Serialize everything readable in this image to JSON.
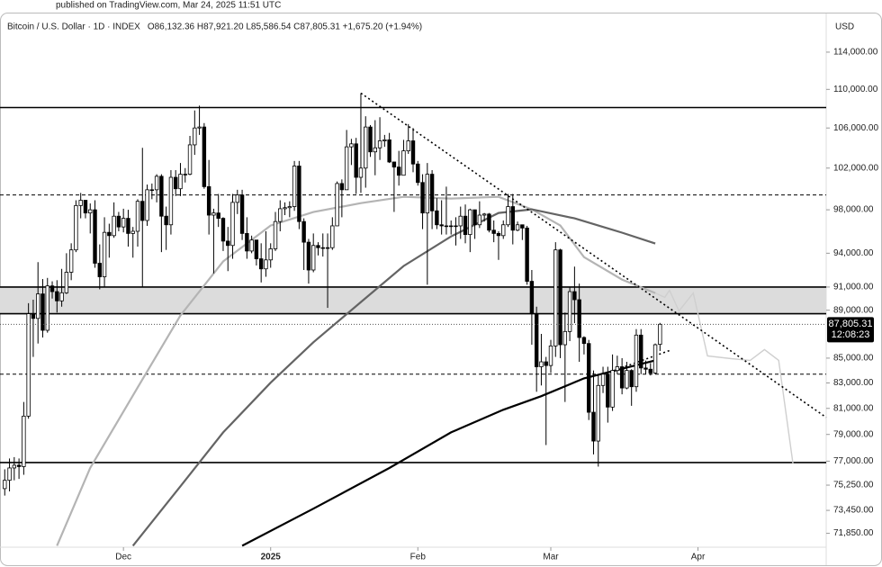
{
  "header": "published on TradingView.com, Mar 24, 2025 11:51 UTC",
  "chart_data": {
    "type": "candlestick",
    "title": "Bitcoin / U.S. Dollar · 1D · INDEX",
    "ohlc_text": "O86,132.36  H87,921.20  L85,586.54  C87,805.31  +1,675.20 (+1.94%)",
    "currency": "USD",
    "last_price_label": "87,805.31",
    "countdown": "12:08:23",
    "up_color": "#ffffff",
    "down_color": "#000000",
    "log_scale": true,
    "xlim": [
      -1,
      173
    ],
    "xticks": [
      {
        "value": 25,
        "label": "Dec"
      },
      {
        "value": 56,
        "label": "2025"
      },
      {
        "value": 87,
        "label": "Feb"
      },
      {
        "value": 115,
        "label": "Mar"
      },
      {
        "value": 146,
        "label": "Apr"
      }
    ],
    "ylim": [
      70900,
      118000
    ],
    "yticks": [
      {
        "value": 114000,
        "label": "114,000.00"
      },
      {
        "value": 110000,
        "label": "110,000.00"
      },
      {
        "value": 106000,
        "label": "106,000.00"
      },
      {
        "value": 102000,
        "label": "102,000.00"
      },
      {
        "value": 98000,
        "label": "98,000.00"
      },
      {
        "value": 94000,
        "label": "94,000.00"
      },
      {
        "value": 91000,
        "label": "91,000.00"
      },
      {
        "value": 89000,
        "label": "89,000.00"
      },
      {
        "value": 85000,
        "label": "85,000.00"
      },
      {
        "value": 83000,
        "label": "83,000.00"
      },
      {
        "value": 81000,
        "label": "81,000.00"
      },
      {
        "value": 79000,
        "label": "79,000.00"
      },
      {
        "value": 77000,
        "label": "77,000.00"
      },
      {
        "value": 75250,
        "label": "75,250.00"
      },
      {
        "value": 73450,
        "label": "73,450.00"
      },
      {
        "value": 71850,
        "label": "71,850.00"
      }
    ],
    "open": [
      75000,
      75600,
      76500,
      76700,
      76600,
      80400,
      88700,
      88300,
      90400,
      87300,
      91100,
      90600,
      89800,
      90500,
      92300,
      94300,
      98400,
      98900,
      97700,
      98000,
      93100,
      91900,
      95900,
      95600,
      97400,
      96400,
      97200,
      95800,
      96000,
      98800,
      97000,
      99900,
      99900,
      101200,
      97400,
      96600,
      101100,
      100000,
      101400,
      101400,
      104300,
      106000,
      106100,
      100200,
      97500,
      97700,
      97200,
      95100,
      94700,
      98700,
      99400,
      95800,
      94200,
      95200,
      93500,
      92600,
      93400,
      94400,
      96900,
      98100,
      98200,
      98300,
      102200,
      96900,
      95000,
      92500,
      94700,
      94500,
      94500,
      94500,
      96500,
      100500,
      99900,
      104100,
      104400,
      101100,
      102000,
      106100,
      103600,
      104000,
      104700,
      104800,
      102600,
      102100,
      101300,
      103700,
      104700,
      102400,
      100600,
      97700,
      101400,
      97900,
      96600,
      96500,
      96500,
      96500,
      96500,
      97400,
      95700,
      98000,
      96600,
      97500,
      97600,
      96100,
      95800,
      95600,
      96600,
      98300,
      96100,
      96600,
      96300,
      91500,
      88700,
      84300,
      84700,
      84400,
      86000,
      94300,
      86100,
      87200,
      90600,
      89900,
      86700,
      86200,
      80700,
      78500,
      82800,
      83700,
      81100,
      84000,
      84300,
      82600,
      84000,
      82700,
      86900,
      84200,
      84100,
      83800,
      86132.36
    ],
    "high": [
      76400,
      77200,
      77300,
      77200,
      81500,
      89600,
      89900,
      93200,
      91700,
      91800,
      91500,
      91600,
      92600,
      94000,
      94900,
      98900,
      99600,
      98800,
      98600,
      98900,
      94800,
      97300,
      96700,
      98700,
      97800,
      98100,
      98000,
      96400,
      99000,
      104000,
      100400,
      100500,
      101400,
      101400,
      98300,
      101800,
      101800,
      102500,
      102000,
      105200,
      107800,
      108300,
      106500,
      102800,
      98100,
      99500,
      97300,
      96400,
      99500,
      99900,
      99900,
      97300,
      95600,
      95200,
      94900,
      96000,
      94900,
      97800,
      98900,
      98700,
      98800,
      102700,
      102700,
      97200,
      95300,
      95800,
      95000,
      95800,
      95800,
      97300,
      100700,
      100900,
      105800,
      104900,
      105000,
      109600,
      107200,
      106300,
      106800,
      107100,
      105300,
      105500,
      102600,
      103700,
      104800,
      106400,
      106000,
      102700,
      101400,
      102500,
      101800,
      99100,
      98900,
      100200,
      97000,
      97300,
      98300,
      98500,
      98100,
      98000,
      98800,
      97700,
      97700,
      97000,
      96000,
      97000,
      99500,
      99500,
      96900,
      96600,
      96500,
      92500,
      89300,
      87000,
      85100,
      86500,
      95000,
      94400,
      88800,
      91000,
      92800,
      91300,
      86800,
      86500,
      84000,
      83600,
      84300,
      84300,
      85300,
      85200,
      85000,
      84700,
      84100,
      87400,
      87400,
      84800,
      84600,
      86200,
      87921.2
    ],
    "low": [
      74500,
      74800,
      75600,
      75700,
      76000,
      80200,
      85100,
      86200,
      86700,
      87100,
      90000,
      88800,
      89300,
      90400,
      91600,
      94100,
      97200,
      97200,
      95800,
      92700,
      90800,
      91000,
      93600,
      95400,
      96000,
      95900,
      94600,
      93600,
      94600,
      91000,
      96500,
      99000,
      98700,
      94100,
      94300,
      95700,
      99300,
      99300,
      100600,
      101300,
      103300,
      105300,
      100000,
      95700,
      92200,
      96400,
      94200,
      92400,
      93500,
      97600,
      95200,
      93500,
      94000,
      92900,
      91400,
      91900,
      92700,
      94200,
      96000,
      97500,
      97300,
      97900,
      96200,
      92500,
      91300,
      92300,
      93800,
      93700,
      89200,
      94300,
      96500,
      97300,
      99900,
      102300,
      99500,
      99600,
      100100,
      103100,
      101300,
      102800,
      104100,
      102500,
      97800,
      100300,
      101300,
      103400,
      101600,
      100300,
      96200,
      91200,
      96200,
      96200,
      95700,
      95700,
      95700,
      94700,
      95300,
      94900,
      94100,
      95300,
      96300,
      96900,
      95900,
      95000,
      93400,
      95300,
      96400,
      94800,
      96000,
      95200,
      91200,
      86100,
      82300,
      82800,
      78200,
      83800,
      85100,
      85000,
      81500,
      86400,
      87900,
      84700,
      85300,
      80100,
      77500,
      76600,
      82200,
      79900,
      80800,
      83700,
      82100,
      82500,
      81200,
      82300,
      83700,
      83700,
      83600,
      83700,
      85586.54
    ],
    "close": [
      75600,
      76500,
      76700,
      76600,
      80400,
      88700,
      88300,
      90400,
      87300,
      91100,
      90600,
      89800,
      90500,
      92300,
      94300,
      98400,
      98900,
      97700,
      98000,
      93100,
      91900,
      95900,
      95600,
      97400,
      96400,
      97200,
      95800,
      96000,
      98800,
      97000,
      99900,
      99900,
      101200,
      97400,
      96600,
      101100,
      100000,
      101400,
      101400,
      104300,
      106000,
      106100,
      100200,
      97500,
      97700,
      97200,
      95100,
      94700,
      98700,
      99400,
      95800,
      94200,
      95200,
      93500,
      92600,
      93400,
      94400,
      96900,
      98100,
      98200,
      98300,
      102200,
      96900,
      95000,
      92500,
      94700,
      94500,
      94500,
      94500,
      96500,
      100500,
      99900,
      104100,
      104400,
      101100,
      102000,
      106100,
      103600,
      104000,
      104700,
      104800,
      102600,
      102100,
      101300,
      103700,
      104700,
      102400,
      100600,
      97700,
      101400,
      97900,
      96600,
      96500,
      96500,
      96500,
      96500,
      97400,
      95700,
      98000,
      96600,
      97500,
      97600,
      96100,
      95800,
      95600,
      96600,
      98300,
      96100,
      96600,
      96300,
      91500,
      88700,
      84300,
      84700,
      84400,
      86000,
      94300,
      86100,
      87200,
      90600,
      89900,
      86700,
      86200,
      80700,
      78500,
      82800,
      83700,
      81100,
      84000,
      84300,
      82600,
      84000,
      82700,
      86900,
      84200,
      84100,
      83800,
      86100,
      87805.31
    ],
    "zone": {
      "values": [
        88700,
        91000
      ],
      "color": "#dcdcdc"
    },
    "levels": [
      {
        "value": 108100,
        "style": "solid"
      },
      {
        "value": 91000,
        "style": "solid"
      },
      {
        "value": 88700,
        "style": "solid"
      },
      {
        "value": 76900,
        "style": "solid"
      },
      {
        "value": 99400,
        "style": "dashed"
      },
      {
        "value": 83700,
        "style": "dashed"
      }
    ],
    "trendlines": [
      {
        "x": [
          75,
          173
        ],
        "values": [
          109600,
          80300
        ]
      },
      {
        "x": [
          128,
          140
        ],
        "values": [
          83950,
          85620
        ]
      }
    ],
    "lines": [
      {
        "color": "#b4b4b4",
        "width": 2.2,
        "x": [
          11,
          18,
          28,
          37,
          46,
          56,
          65,
          75,
          84,
          94,
          104,
          111,
          117,
          122,
          130,
          137
        ],
        "values": [
          71000,
          76500,
          82650,
          88550,
          93270,
          96530,
          97790,
          98630,
          99230,
          99060,
          99230,
          98040,
          96530,
          93650,
          91660,
          90480
        ]
      },
      {
        "color": "#646464",
        "width": 2.2,
        "x": [
          27,
          37,
          46,
          56,
          65,
          75,
          84,
          94,
          104,
          111,
          120,
          130,
          137
        ],
        "values": [
          71000,
          75170,
          79160,
          83020,
          86300,
          89700,
          92850,
          95530,
          97700,
          98040,
          97200,
          95870,
          94880
        ]
      },
      {
        "color": "#000000",
        "width": 2.2,
        "x": [
          50,
          65,
          81,
          94,
          105,
          113,
          122,
          137
        ],
        "values": [
          71000,
          73570,
          76500,
          79160,
          80890,
          81950,
          83370,
          84820
        ]
      },
      {
        "color": "#cfcfcf",
        "width": 1.4,
        "x": [
          137,
          139,
          140,
          142,
          145,
          148,
          153,
          157,
          160,
          163,
          166
        ],
        "values": [
          90480,
          90100,
          90720,
          88930,
          90480,
          85180,
          84960,
          84820,
          85700,
          84820,
          76810
        ]
      }
    ]
  }
}
